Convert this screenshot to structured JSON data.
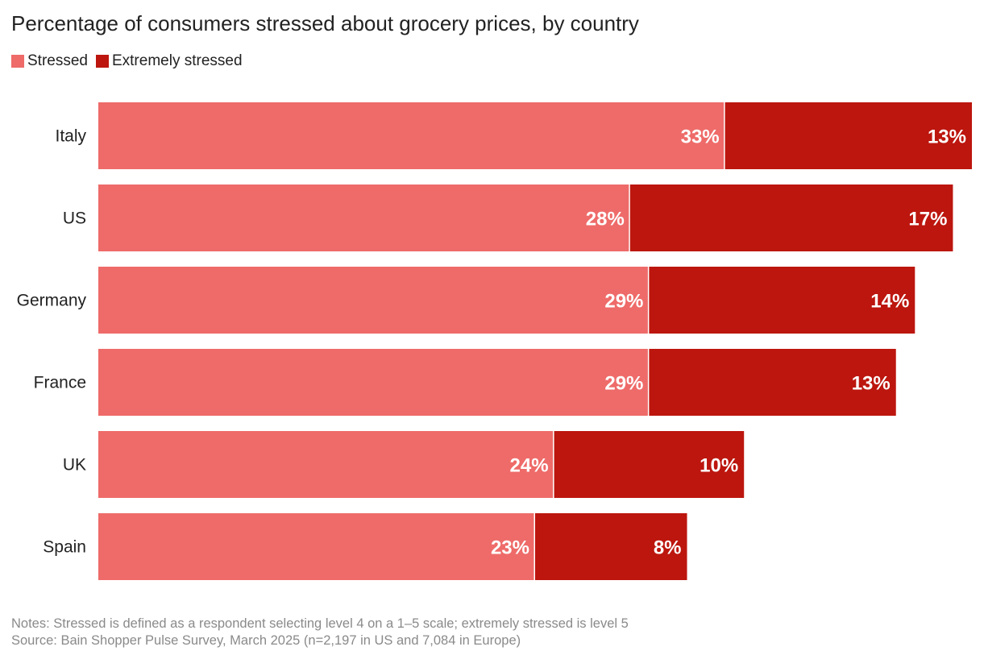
{
  "title": "Percentage of consumers stressed about grocery prices, by country",
  "colors": {
    "stressed": "#EE6B69",
    "extremely_stressed": "#BC160E",
    "label_text": "#FFFFFF"
  },
  "chart_data": {
    "type": "bar",
    "orientation": "horizontal",
    "stacked": true,
    "title": "Percentage of consumers stressed about grocery prices, by country",
    "categories": [
      "Italy",
      "US",
      "Germany",
      "France",
      "UK",
      "Spain"
    ],
    "series": [
      {
        "name": "Stressed",
        "values": [
          33,
          28,
          29,
          29,
          24,
          23
        ],
        "labels": [
          "33%",
          "28%",
          "29%",
          "29%",
          "24%",
          "23%"
        ]
      },
      {
        "name": "Extremely stressed",
        "values": [
          13,
          17,
          14,
          13,
          10,
          8
        ],
        "labels": [
          "13%",
          "17%",
          "14%",
          "13%",
          "10%",
          "8%"
        ]
      }
    ],
    "xlim": [
      0,
      46
    ],
    "grid": false,
    "legend_position": "top-left"
  },
  "footer": {
    "notes": "Notes: Stressed is defined as a respondent selecting level 4 on a 1–5 scale; extremely stressed is level 5",
    "source": "Source: Bain Shopper Pulse Survey, March 2025 (n=2,197 in US and 7,084 in Europe)"
  }
}
